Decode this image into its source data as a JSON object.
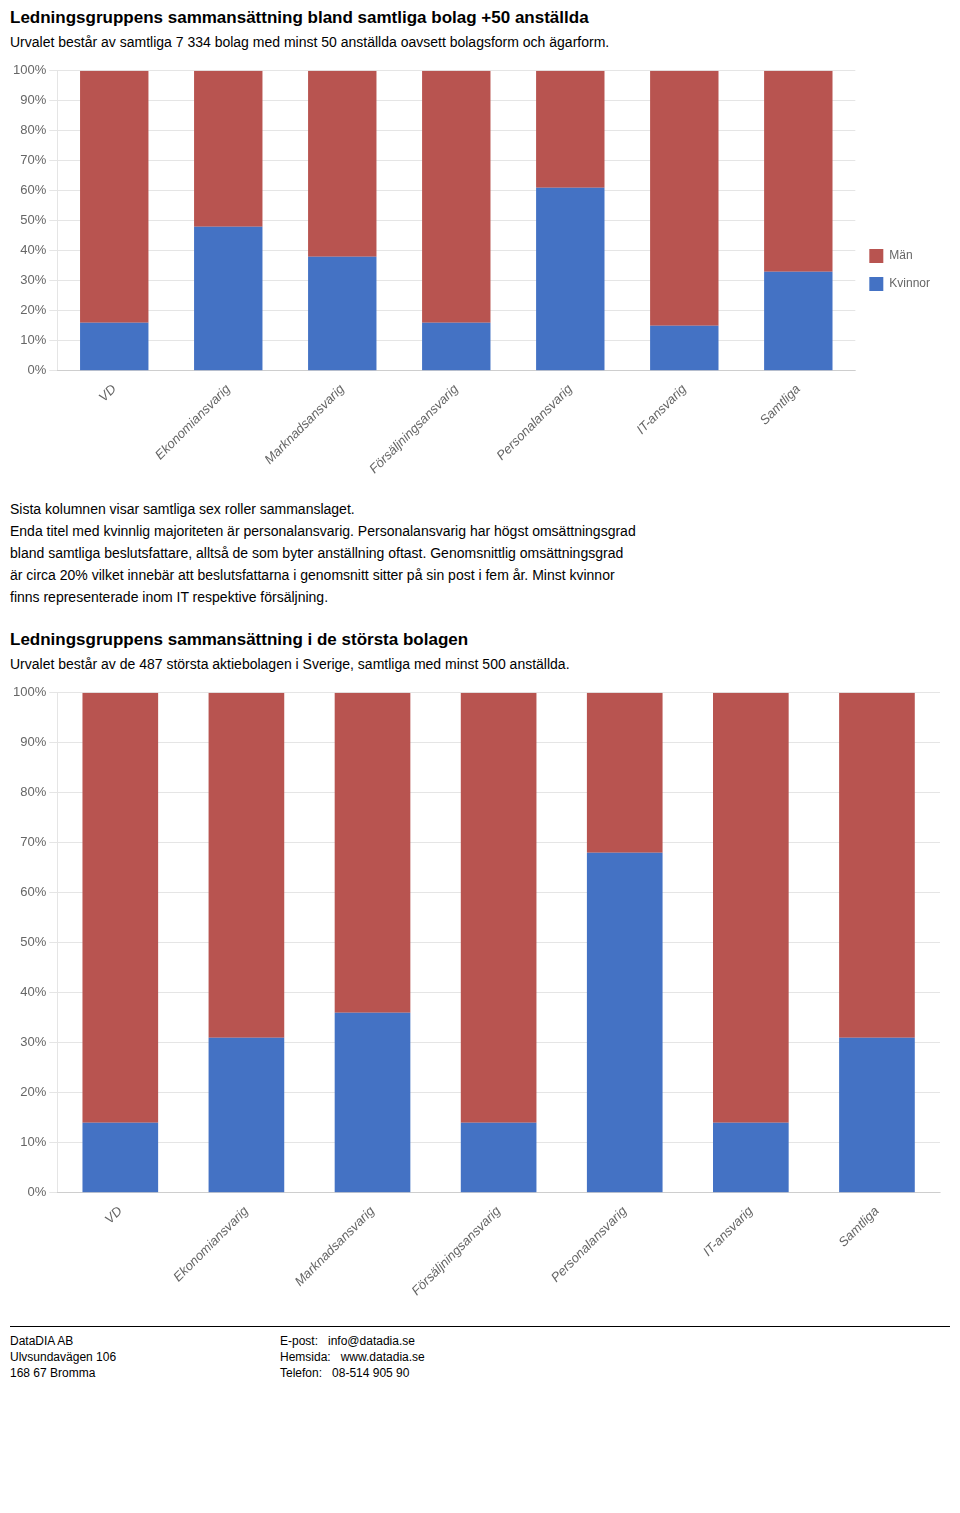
{
  "chart_data": [
    {
      "type": "bar",
      "title": "Ledningsgruppens sammansättning bland samtliga bolag +50 anställda",
      "subtitle": "Urvalet består av samtliga 7 334 bolag med minst 50 anställda oavsett bolagsform och ägarform.",
      "categories": [
        "VD",
        "Ekonomiansvarig",
        "Marknadsansvarig",
        "Försäljningsansvarig",
        "Personalansvarig",
        "IT-ansvarig",
        "Samtliga"
      ],
      "series": [
        {
          "name": "Kvinnor",
          "color": "#4472C4",
          "values": [
            0.16,
            0.48,
            0.38,
            0.16,
            0.61,
            0.15,
            0.33
          ]
        },
        {
          "name": "Män",
          "color": "#B85450",
          "values": [
            0.84,
            0.52,
            0.62,
            0.84,
            0.39,
            0.85,
            0.67
          ]
        }
      ],
      "stacked": true,
      "ylim": [
        0,
        1.0
      ],
      "yticks": [
        {
          "value": 0,
          "label": "0%"
        },
        {
          "value": 0.1,
          "label": "10%"
        },
        {
          "value": 0.2,
          "label": "20%"
        },
        {
          "value": 0.3,
          "label": "30%"
        },
        {
          "value": 0.4,
          "label": "40%"
        },
        {
          "value": 0.5,
          "label": "50%"
        },
        {
          "value": 0.6,
          "label": "60%"
        },
        {
          "value": 0.7,
          "label": "70%"
        },
        {
          "value": 0.8,
          "label": "80%"
        },
        {
          "value": 0.9,
          "label": "90%"
        },
        {
          "value": 1.0,
          "label": "100%"
        }
      ],
      "grid": true,
      "legend": "right",
      "annotations": [
        "Sista kolumnen visar samtliga sex roller sammanslaget.",
        "Enda titel med kvinnlig majoriteten är personalansvarig. Personalansvarig har högst omsättningsgrad",
        "bland samtliga beslutsfattare, alltså de som byter anställning oftast. Genomsnittlig omsättningsgrad",
        "är circa 20% vilket innebär att beslutsfattarna i genomsnitt sitter på sin post i fem år. Minst kvinnor",
        "finns representerade inom IT respektive försäljning."
      ]
    },
    {
      "type": "bar",
      "title": "Ledningsgruppens sammansättning i de största bolagen",
      "subtitle": "Urvalet består av de 487 största aktiebolagen i Sverige, samtliga med minst 500 anställda.",
      "categories": [
        "VD",
        "Ekonomiansvarig",
        "Marknadsansvarig",
        "Försäljningsansvarig",
        "Personalansvarig",
        "IT-ansvarig",
        "Samtliga"
      ],
      "series": [
        {
          "name": "Kvinnor",
          "color": "#4472C4",
          "values": [
            0.14,
            0.31,
            0.36,
            0.14,
            0.68,
            0.14,
            0.31
          ]
        },
        {
          "name": "Män",
          "color": "#B85450",
          "values": [
            0.86,
            0.69,
            0.64,
            0.86,
            0.32,
            0.86,
            0.69
          ]
        }
      ],
      "stacked": true,
      "ylim": [
        0,
        1.0
      ],
      "yticks": [
        {
          "value": 0,
          "label": "0%"
        },
        {
          "value": 0.1,
          "label": "10%"
        },
        {
          "value": 0.2,
          "label": "20%"
        },
        {
          "value": 0.3,
          "label": "30%"
        },
        {
          "value": 0.4,
          "label": "40%"
        },
        {
          "value": 0.5,
          "label": "50%"
        },
        {
          "value": 0.6,
          "label": "60%"
        },
        {
          "value": 0.7,
          "label": "70%"
        },
        {
          "value": 0.8,
          "label": "80%"
        },
        {
          "value": 0.9,
          "label": "90%"
        },
        {
          "value": 1.0,
          "label": "100%"
        }
      ],
      "grid": true
    }
  ],
  "footer": [
    [
      "DataDIA AB",
      "Ulvsundavägen 106",
      "168 67 Bromma"
    ],
    [
      "E-post:   info@datadia.se",
      "Hemsida:   www.datadia.se",
      "Telefon:   08-514 905 90"
    ]
  ]
}
